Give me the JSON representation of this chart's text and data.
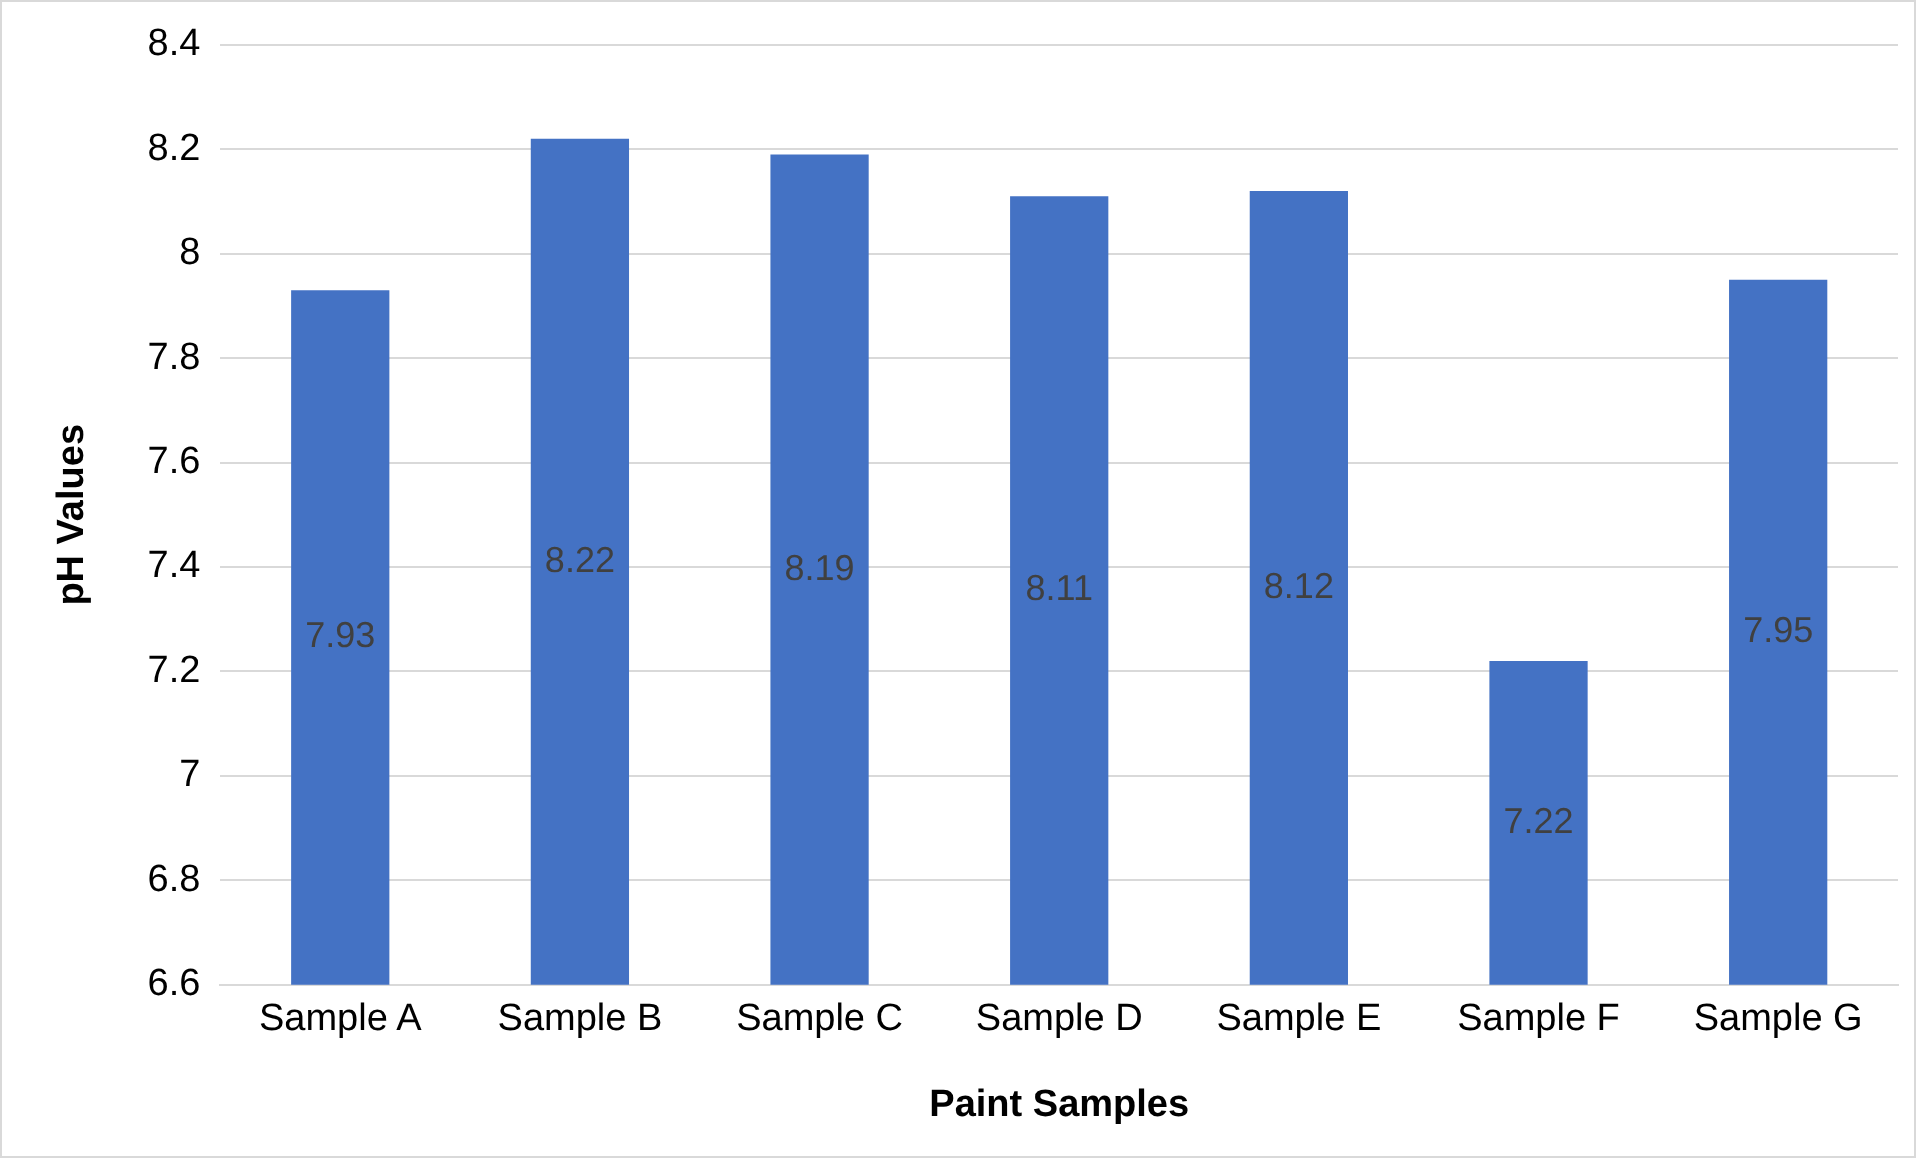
{
  "chart_data": {
    "type": "bar",
    "xlabel": "Paint Samples",
    "ylabel": "pH Values",
    "categories": [
      "Sample A",
      "Sample B",
      "Sample C",
      "Sample D",
      "Sample E",
      "Sample F",
      "Sample G"
    ],
    "values": [
      7.93,
      8.22,
      8.19,
      8.11,
      8.12,
      7.22,
      7.95
    ],
    "color": "#4472c4",
    "ylim": [
      6.6,
      8.4
    ],
    "yticks": [
      6.6,
      6.8,
      7,
      7.2,
      7.4,
      7.6,
      7.8,
      8,
      8.2,
      8.4
    ],
    "grid": "y",
    "data_labels": true
  }
}
